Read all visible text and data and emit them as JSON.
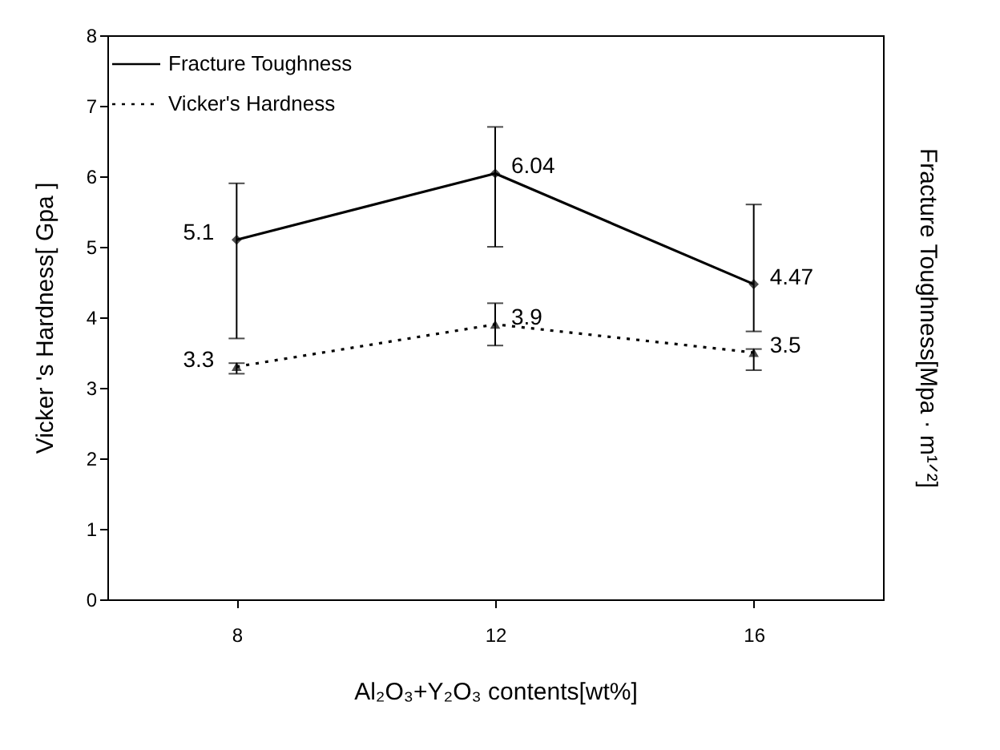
{
  "chart_data": {
    "type": "line",
    "xlabel": "Al₂O₃+Y₂O₃ contents[wt%]",
    "ylabel": "Vicker 's Hardness[ Gpa ]",
    "y2label": "Fracture Toughness[Mpa  · m¹ᐟ²]",
    "x": [
      8,
      12,
      16
    ],
    "xlim": [
      6,
      18
    ],
    "xticks": [
      8,
      12,
      16
    ],
    "ylim": [
      0,
      8
    ],
    "yticks": [
      0,
      1,
      2,
      3,
      4,
      5,
      6,
      7,
      8
    ],
    "grid": false,
    "legend": "top left",
    "series": [
      {
        "name": "Fracture Toughness",
        "color": "#000000",
        "values": [
          5.1,
          6.04,
          4.47
        ],
        "value_labels": [
          "5.1",
          "6.04",
          "4.47"
        ],
        "errors": [
          [
            3.7,
            5.9
          ],
          [
            5.0,
            6.7
          ],
          [
            3.8,
            5.6
          ]
        ],
        "marker": "diamond",
        "line_style": "solid"
      },
      {
        "name": "Vicker's Hardness",
        "color": "#000000",
        "values": [
          3.3,
          3.9,
          3.5
        ],
        "value_labels": [
          "3.3",
          "3.9",
          "3.5"
        ],
        "errors": [
          [
            3.2,
            3.35
          ],
          [
            3.6,
            4.2
          ],
          [
            3.25,
            3.55
          ]
        ],
        "marker": "triangle",
        "line_style": "dotted"
      }
    ]
  }
}
